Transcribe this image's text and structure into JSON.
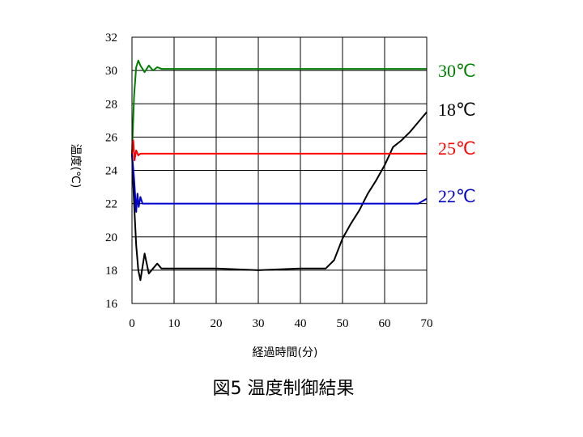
{
  "chart_data": {
    "type": "line",
    "title": "",
    "xlabel": "経過時間(分)",
    "ylabel": "温度(℃)",
    "xlim": [
      0,
      70
    ],
    "ylim": [
      16,
      32
    ],
    "x_ticks": [
      0,
      10,
      20,
      30,
      40,
      50,
      60,
      70
    ],
    "y_ticks": [
      16,
      18,
      20,
      22,
      24,
      26,
      28,
      30,
      32
    ],
    "grid": true,
    "caption": "図5  温度制御結果",
    "series": [
      {
        "name": "30℃",
        "color": "#008000",
        "x": [
          0,
          0.5,
          1,
          1.5,
          2,
          3,
          4,
          5,
          6,
          7,
          10,
          20,
          30,
          40,
          50,
          60,
          70
        ],
        "y": [
          25.0,
          28.5,
          30.2,
          30.6,
          30.3,
          29.9,
          30.3,
          30.0,
          30.2,
          30.1,
          30.1,
          30.1,
          30.1,
          30.1,
          30.1,
          30.1,
          30.1
        ]
      },
      {
        "name": "18℃",
        "color": "#000000",
        "x": [
          0,
          0.5,
          1,
          1.5,
          2,
          3,
          4,
          5,
          6,
          7,
          10,
          20,
          30,
          40,
          46,
          48,
          50,
          52,
          54,
          56,
          58,
          60,
          62,
          64,
          66,
          68,
          70
        ],
        "y": [
          25.0,
          22.0,
          19.5,
          18.0,
          17.4,
          19.0,
          17.8,
          18.1,
          18.4,
          18.1,
          18.1,
          18.1,
          18.0,
          18.1,
          18.1,
          18.6,
          19.9,
          20.8,
          21.6,
          22.6,
          23.4,
          24.3,
          25.4,
          25.8,
          26.3,
          26.9,
          27.5
        ]
      },
      {
        "name": "25℃",
        "color": "#ff0000",
        "x": [
          0,
          0.3,
          0.6,
          1,
          1.5,
          2,
          3,
          10,
          20,
          30,
          40,
          50,
          60,
          70
        ],
        "y": [
          25.0,
          25.8,
          24.6,
          25.2,
          24.9,
          25.0,
          25.0,
          25.0,
          25.0,
          25.0,
          25.0,
          25.0,
          25.0,
          25.0
        ]
      },
      {
        "name": "22℃",
        "color": "#0000cc",
        "x": [
          0,
          0.5,
          1,
          1.3,
          1.6,
          2,
          2.5,
          3,
          10,
          20,
          30,
          40,
          50,
          60,
          68,
          70
        ],
        "y": [
          25.0,
          23.5,
          21.5,
          22.6,
          21.8,
          22.4,
          22.0,
          22.0,
          22.0,
          22.0,
          22.0,
          22.0,
          22.0,
          22.0,
          22.0,
          22.3
        ]
      }
    ]
  }
}
